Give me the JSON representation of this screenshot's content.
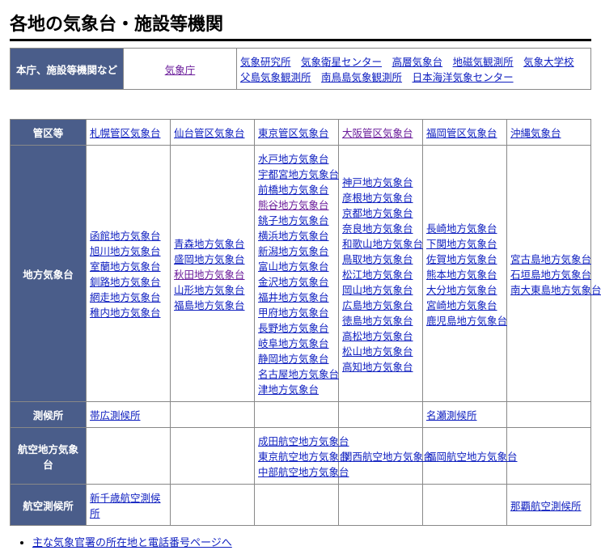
{
  "title": "各地の気象台・施設等機関",
  "table1": {
    "header": "本庁、施設等機関など",
    "main": "気象庁",
    "links": [
      "気象研究所",
      "気象衛星センター",
      "高層気象台",
      "地磁気観測所",
      "気象大学校",
      "父島気象観測所",
      "南鳥島気象観測所",
      "日本海洋気象センター"
    ]
  },
  "table2": {
    "row_headers": [
      "管区等",
      "地方気象台",
      "測候所",
      "航空地方気象台",
      "航空測候所"
    ],
    "kanku": [
      "札幌管区気象台",
      "仙台管区気象台",
      "東京管区気象台",
      "大阪管区気象台",
      "福岡管区気象台",
      "沖縄気象台"
    ],
    "chiho": [
      [
        "函館地方気象台",
        "旭川地方気象台",
        "室蘭地方気象台",
        "釧路地方気象台",
        "網走地方気象台",
        "稚内地方気象台"
      ],
      [
        "青森地方気象台",
        "盛岡地方気象台",
        "秋田地方気象台",
        "山形地方気象台",
        "福島地方気象台"
      ],
      [
        "水戸地方気象台",
        "宇都宮地方気象台",
        "前橋地方気象台",
        "熊谷地方気象台",
        "銚子地方気象台",
        "横浜地方気象台",
        "新潟地方気象台",
        "富山地方気象台",
        "金沢地方気象台",
        "福井地方気象台",
        "甲府地方気象台",
        "長野地方気象台",
        "岐阜地方気象台",
        "静岡地方気象台",
        "名古屋地方気象台",
        "津地方気象台"
      ],
      [
        "神戸地方気象台",
        "彦根地方気象台",
        "京都地方気象台",
        "奈良地方気象台",
        "和歌山地方気象台",
        "鳥取地方気象台",
        "松江地方気象台",
        "岡山地方気象台",
        "広島地方気象台",
        "徳島地方気象台",
        "高松地方気象台",
        "松山地方気象台",
        "高知地方気象台"
      ],
      [
        "長崎地方気象台",
        "下関地方気象台",
        "佐賀地方気象台",
        "熊本地方気象台",
        "大分地方気象台",
        "宮崎地方気象台",
        "鹿児島地方気象台"
      ],
      [
        "宮古島地方気象台",
        "石垣島地方気象台",
        "南大東島地方気象台"
      ]
    ],
    "sokko": [
      "帯広測候所",
      "",
      "",
      "",
      "名瀬測候所",
      ""
    ],
    "koku_chiho": [
      "",
      "",
      [
        "成田航空地方気象台",
        "東京航空地方気象台",
        "中部航空地方気象台"
      ],
      [
        "関西航空地方気象台"
      ],
      [
        "福岡航空地方気象台"
      ],
      ""
    ],
    "koku_sokko": [
      "新千歳航空測候所",
      "",
      "",
      "",
      "",
      "那覇航空測候所"
    ]
  },
  "visited": [
    "気象庁",
    "大阪管区気象台",
    "熊谷地方気象台",
    "秋田地方気象台"
  ],
  "footer_link": "主な気象官署の所在地と電話番号ページへ"
}
